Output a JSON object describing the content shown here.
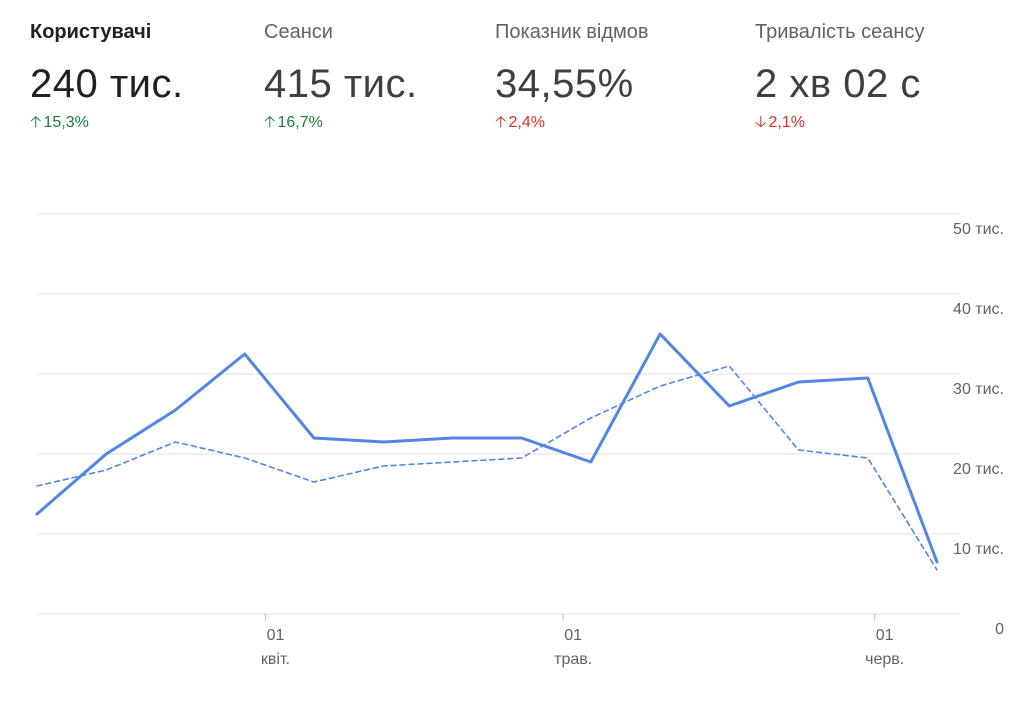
{
  "metrics": [
    {
      "label": "Користувачі",
      "value": "240 тис.",
      "delta": "15,3%",
      "direction": "up",
      "status": "good",
      "active": true
    },
    {
      "label": "Сеанси",
      "value": "415 тис.",
      "delta": "16,7%",
      "direction": "up",
      "status": "good",
      "active": false
    },
    {
      "label": "Показник відмов",
      "value": "34,55%",
      "delta": "2,4%",
      "direction": "up",
      "status": "bad",
      "active": false
    },
    {
      "label": "Тривалість сеансу",
      "value": "2 хв 02 с",
      "delta": "2,1%",
      "direction": "down",
      "status": "bad",
      "active": false
    }
  ],
  "colors": {
    "good": "#188038",
    "bad": "#d93025",
    "series": "#5385e6",
    "grid": "#e0e0e0"
  },
  "chart_data": {
    "type": "line",
    "title": "",
    "xlabel": "",
    "ylabel": "",
    "ylim": [
      0,
      50000
    ],
    "y_ticks": [
      {
        "value": 0,
        "label": "0"
      },
      {
        "value": 10000,
        "label": "10 тис."
      },
      {
        "value": 20000,
        "label": "20 тис."
      },
      {
        "value": 30000,
        "label": "30 тис."
      },
      {
        "value": 40000,
        "label": "40 тис."
      },
      {
        "value": 50000,
        "label": "50 тис."
      }
    ],
    "x_ticks": [
      {
        "index": 3.3,
        "day": "01",
        "month": "квіт."
      },
      {
        "index": 7.6,
        "day": "01",
        "month": "трав."
      },
      {
        "index": 12.1,
        "day": "01",
        "month": "черв."
      }
    ],
    "grid": true,
    "legend": "none",
    "series": [
      {
        "style": "solid",
        "values": [
          12500,
          20000,
          25500,
          32500,
          22000,
          21500,
          22000,
          22000,
          19000,
          35000,
          26000,
          29000,
          29500,
          6500
        ]
      },
      {
        "style": "dashed",
        "values": [
          16000,
          18000,
          21500,
          19500,
          16500,
          18500,
          19000,
          19500,
          24500,
          28500,
          31000,
          20500,
          19500,
          5500
        ]
      }
    ]
  }
}
